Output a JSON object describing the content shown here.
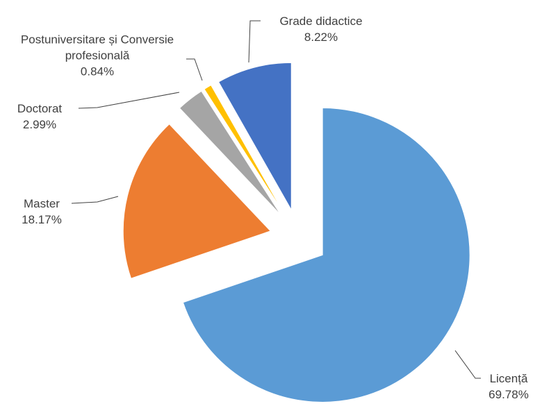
{
  "chart_data": {
    "type": "pie",
    "categories": [
      "Licență",
      "Master",
      "Doctorat",
      "Postuniversitare și Conversie profesională",
      "Grade didactice"
    ],
    "values": [
      69.78,
      18.17,
      2.99,
      0.84,
      8.22
    ],
    "value_labels": [
      "69.78%",
      "18.17%",
      "2.99%",
      "0.84%",
      "8.22%"
    ],
    "colors": [
      "#5b9bd5",
      "#ed7d31",
      "#a5a5a5",
      "#ffc000",
      "#4472c4"
    ]
  }
}
